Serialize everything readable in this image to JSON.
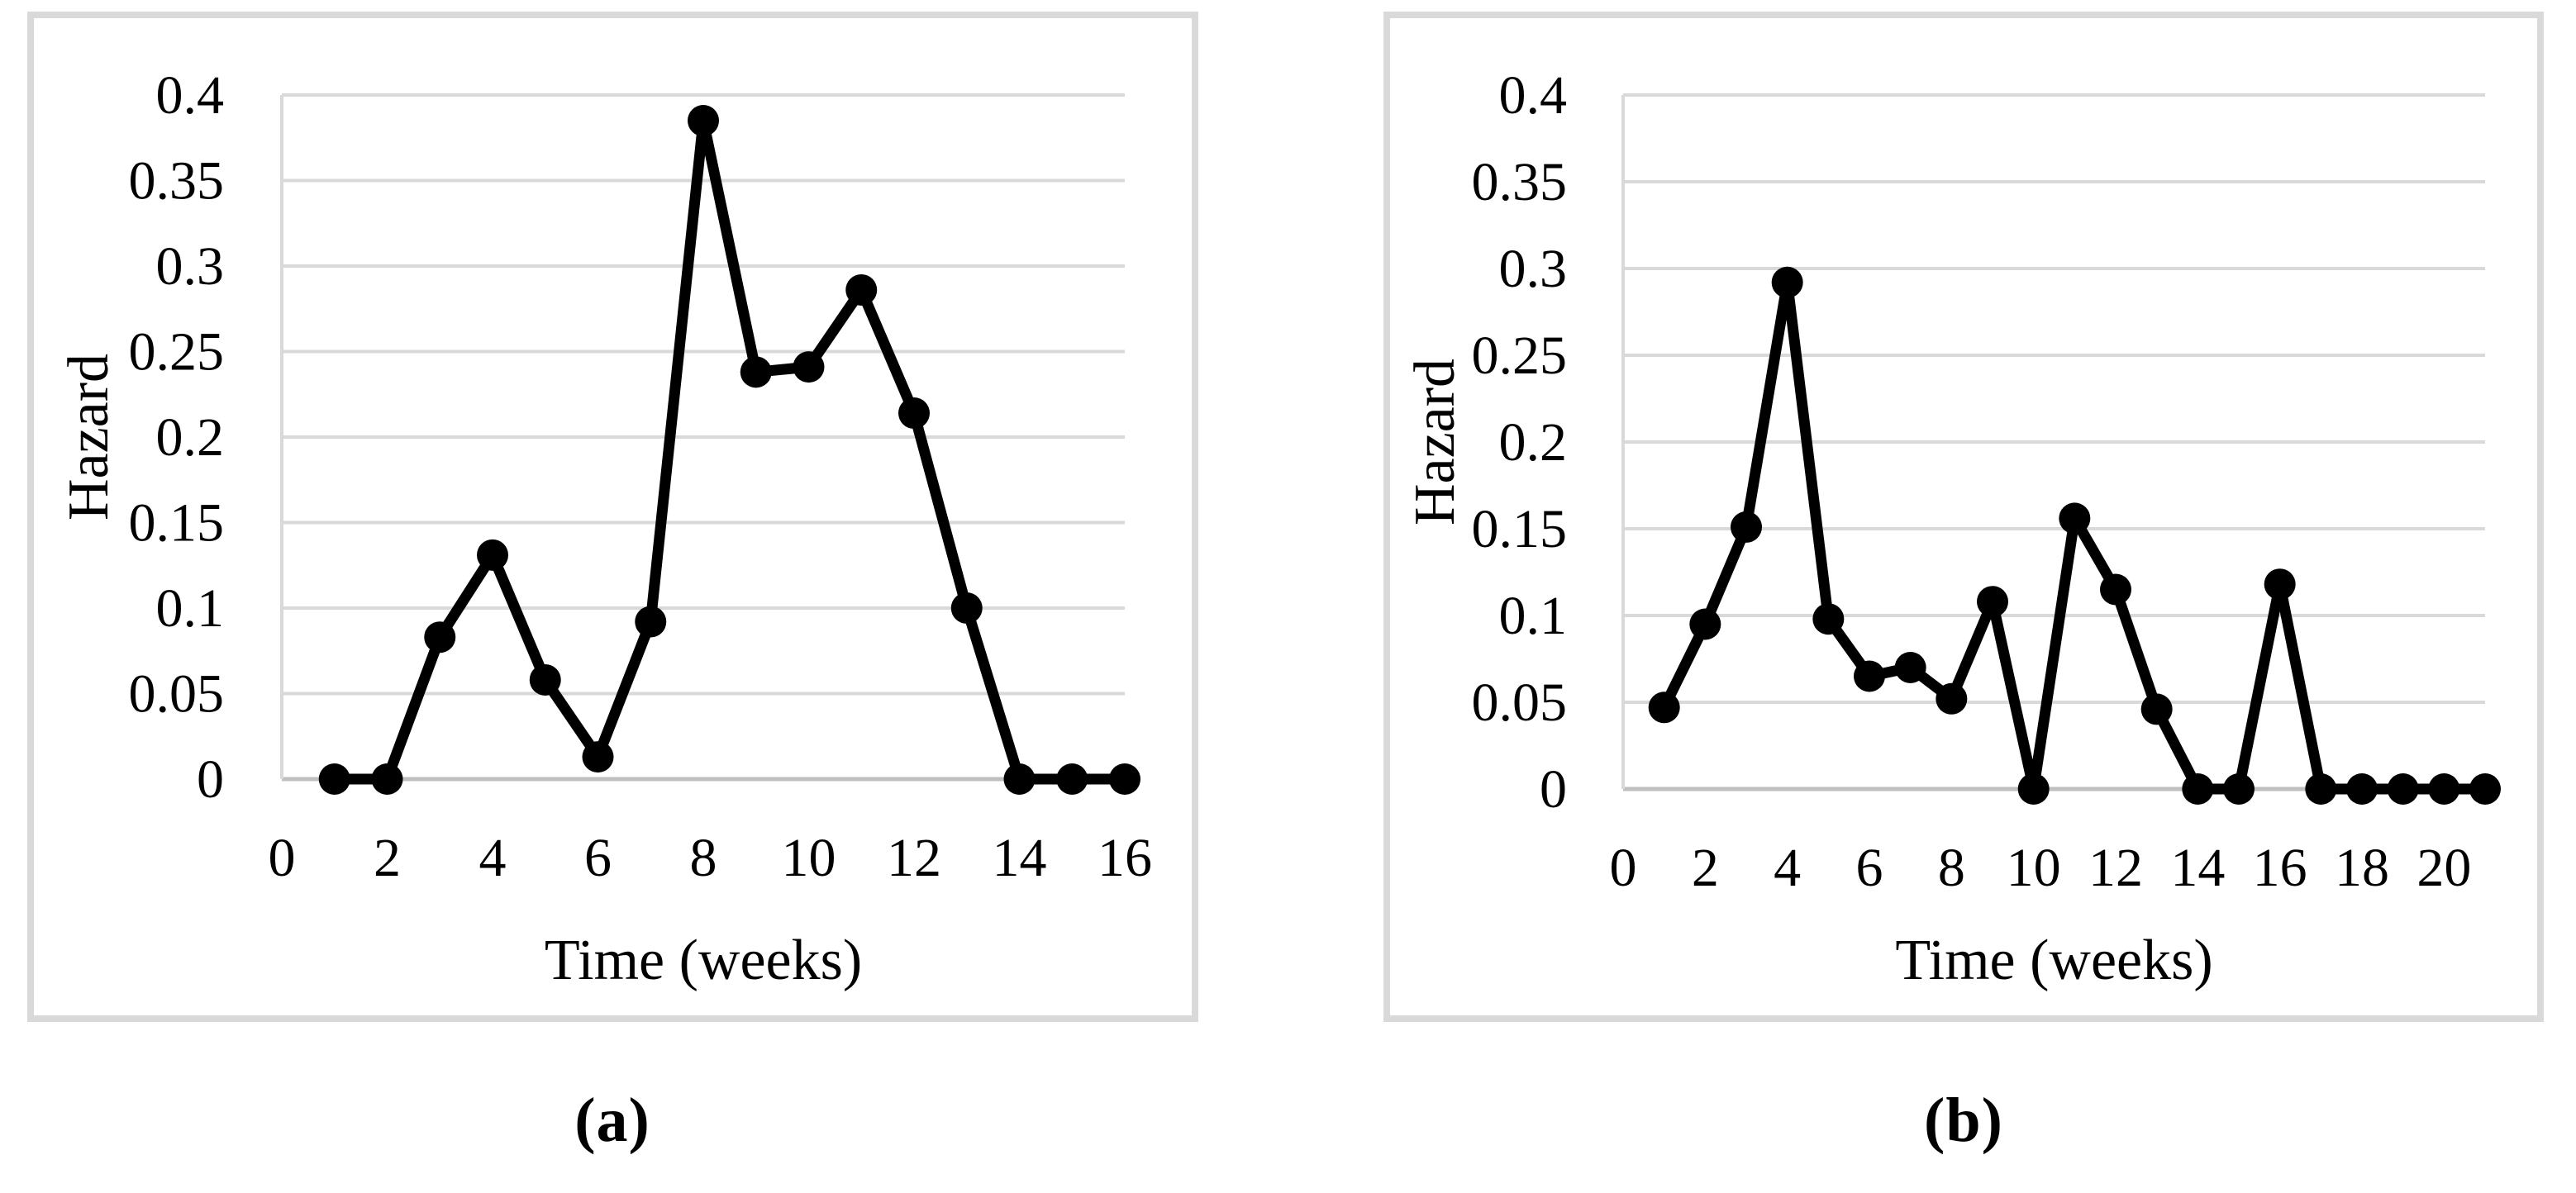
{
  "figure": {
    "captions": [
      {
        "label": "(a)"
      },
      {
        "label": "(b)"
      }
    ]
  },
  "colors": {
    "line": "#000000",
    "marker": "#000000",
    "gridline": "#d9d9d9",
    "axis_baseline": "#bfbfbf",
    "axis_vertical": "#d9d9d9",
    "panel_border": "#d9d9d9",
    "text": "#000000",
    "background": "#ffffff"
  },
  "chart_data": [
    {
      "type": "line",
      "panel": "a",
      "title": "",
      "xlabel": "Time (weeks)",
      "ylabel": "Hazard",
      "x": [
        1,
        2,
        3,
        4,
        5,
        6,
        7,
        8,
        9,
        10,
        11,
        12,
        13,
        14,
        15,
        16
      ],
      "y": [
        0,
        0,
        0.083,
        0.131,
        0.058,
        0.013,
        0.092,
        0.385,
        0.238,
        0.241,
        0.286,
        0.214,
        0.1,
        0,
        0,
        0
      ],
      "xlim": [
        0,
        16
      ],
      "ylim": [
        0,
        0.4
      ],
      "xtick_values": [
        0,
        2,
        4,
        6,
        8,
        10,
        12,
        14,
        16
      ],
      "xtick_labels": [
        "0",
        "2",
        "4",
        "6",
        "8",
        "10",
        "12",
        "14",
        "16"
      ],
      "ytick_values": [
        0,
        0.05,
        0.1,
        0.15,
        0.2,
        0.25,
        0.3,
        0.35,
        0.4
      ],
      "ytick_labels": [
        "0",
        "0.05",
        "0.1",
        "0.15",
        "0.2",
        "0.25",
        "0.3",
        "0.35",
        "0.4"
      ],
      "grid": "horizontal",
      "legend": null,
      "marker": "filled-circle"
    },
    {
      "type": "line",
      "panel": "b",
      "title": "",
      "xlabel": "Time (weeks)",
      "ylabel": "Hazard",
      "x": [
        1,
        2,
        3,
        4,
        5,
        6,
        7,
        8,
        9,
        10,
        11,
        12,
        13,
        14,
        15,
        16,
        17,
        18,
        19,
        20,
        21
      ],
      "y": [
        0.047,
        0.095,
        0.151,
        0.292,
        0.098,
        0.065,
        0.07,
        0.052,
        0.108,
        0,
        0.156,
        0.115,
        0.046,
        0,
        0,
        0.118,
        0,
        0,
        0,
        0,
        0
      ],
      "xlim": [
        0,
        21
      ],
      "ylim": [
        0,
        0.4
      ],
      "xtick_values": [
        0,
        2,
        4,
        6,
        8,
        10,
        12,
        14,
        16,
        18,
        20
      ],
      "xtick_labels": [
        "0",
        "2",
        "4",
        "6",
        "8",
        "10",
        "12",
        "14",
        "16",
        "18",
        "20"
      ],
      "ytick_values": [
        0,
        0.05,
        0.1,
        0.15,
        0.2,
        0.25,
        0.3,
        0.35,
        0.4
      ],
      "ytick_labels": [
        "0",
        "0.05",
        "0.1",
        "0.15",
        "0.2",
        "0.25",
        "0.3",
        "0.35",
        "0.4"
      ],
      "grid": "horizontal",
      "legend": null,
      "marker": "filled-circle"
    }
  ]
}
